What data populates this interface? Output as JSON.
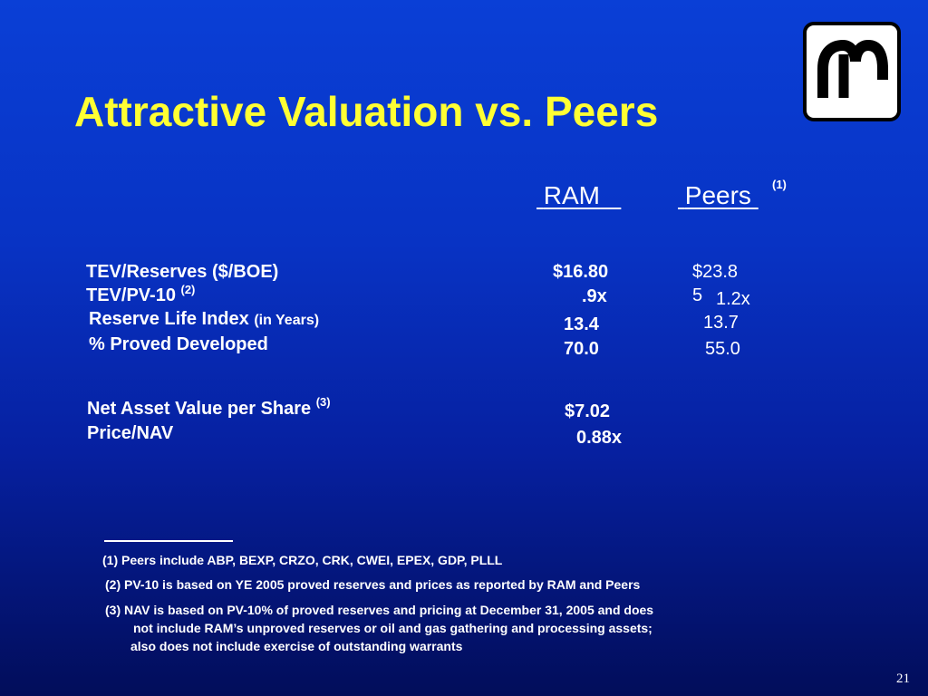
{
  "slide": {
    "title": "Attractive Valuation vs. Peers",
    "page_number": "21",
    "colors": {
      "background": "#0a3fd6",
      "title": "#ffff33",
      "text": "#ffffff"
    }
  },
  "logo": {
    "icon": "ram-horns-logo-icon"
  },
  "columns": {
    "ram": "RAM",
    "peers": "Peers",
    "peers_note_ref": "(1)"
  },
  "rows": [
    {
      "label": "TEV/Reserves ($/BOE)",
      "ram": "$16.80",
      "peers": "$23.8"
    },
    {
      "label": "TEV/PV-10",
      "ref": "(2)",
      "ram": ".9x",
      "peers_extra": "5",
      "peers": "1.2x"
    },
    {
      "label": "Reserve Life Index",
      "label_suffix": "(in Years)",
      "ram": "13.4",
      "peers": "13.7"
    },
    {
      "label": "% Proved Developed",
      "ram": "70.0",
      "peers": "55.0"
    }
  ],
  "nav": {
    "label": "Net Asset Value per Share",
    "ref": "(3)",
    "ram": "$7.02"
  },
  "price_nav": {
    "label": "Price/NAV",
    "ram": "0.88x"
  },
  "footnotes": [
    "(1)   Peers include ABP, BEXP, CRZO, CRK, CWEI, EPEX, GDP, PLLL",
    "(2)   PV-10 is based on YE 2005 proved reserves and prices as reported by RAM and Peers",
    "(3)   NAV is based on PV-10% of proved reserves and pricing at December 31, 2005 and does",
    "not include RAM’s unproved reserves or oil and gas gathering and processing assets;",
    "also does not include exercise of outstanding warrants"
  ]
}
